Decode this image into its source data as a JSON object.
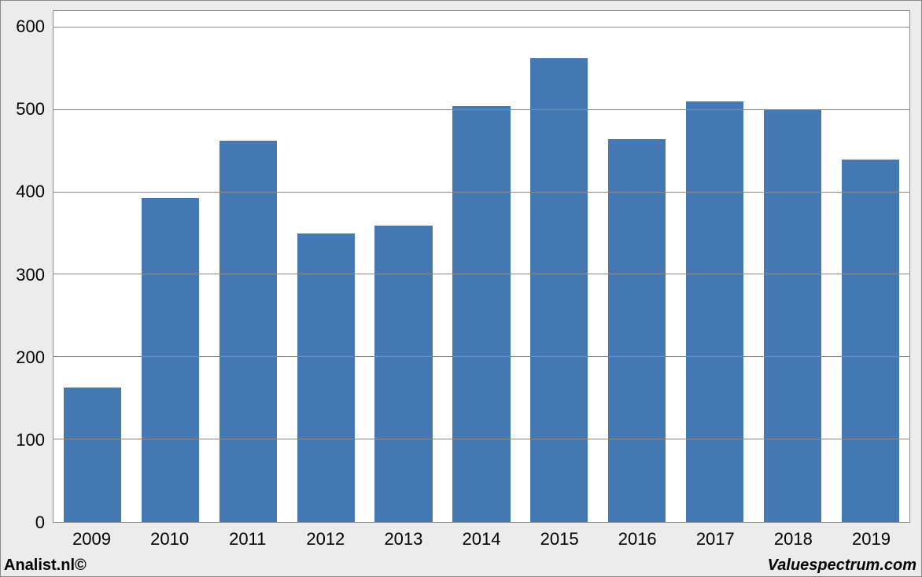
{
  "chart": {
    "type": "bar",
    "categories": [
      "2009",
      "2010",
      "2011",
      "2012",
      "2013",
      "2014",
      "2015",
      "2016",
      "2017",
      "2018",
      "2019"
    ],
    "values": [
      163,
      393,
      463,
      350,
      360,
      505,
      563,
      465,
      510,
      500,
      440
    ],
    "bar_color": "#4479b3",
    "background_color": "#ffffff",
    "outer_background": "#ececec",
    "grid_color": "#8a8a8a",
    "border_color": "#8a8a8a",
    "ymin": 0,
    "ymax": 620,
    "yticks": [
      0,
      100,
      200,
      300,
      400,
      500,
      600
    ],
    "tick_fontsize": 22,
    "bar_width_ratio": 0.74
  },
  "footer": {
    "left": "Analist.nl©",
    "right": "Valuespectrum.com"
  }
}
